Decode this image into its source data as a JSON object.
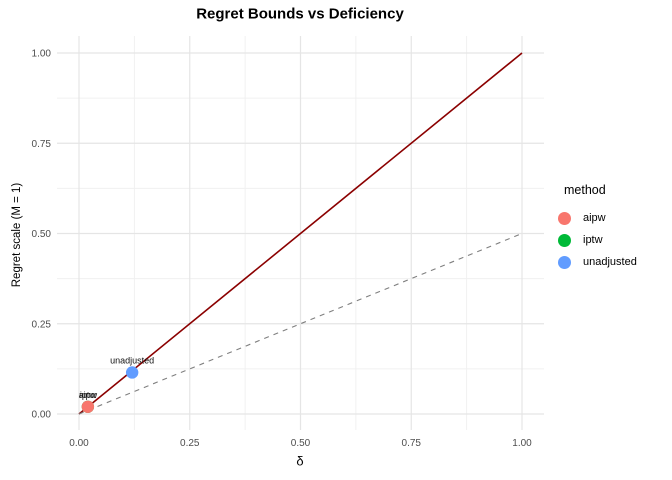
{
  "chart_data": {
    "type": "scatter",
    "title": "Regret Bounds vs Deficiency",
    "xlabel": "δ",
    "ylabel": "Regret scale (M = 1)",
    "xlim": [
      0,
      1
    ],
    "ylim": [
      0,
      1
    ],
    "grid": "on",
    "x_ticks": [
      {
        "v": 0.0,
        "label": "0.00"
      },
      {
        "v": 0.25,
        "label": "0.25"
      },
      {
        "v": 0.5,
        "label": "0.50"
      },
      {
        "v": 0.75,
        "label": "0.75"
      },
      {
        "v": 1.0,
        "label": "1.00"
      }
    ],
    "y_ticks": [
      {
        "v": 0.0,
        "label": "0.00"
      },
      {
        "v": 0.25,
        "label": "0.25"
      },
      {
        "v": 0.5,
        "label": "0.50"
      },
      {
        "v": 0.75,
        "label": "0.75"
      },
      {
        "v": 1.0,
        "label": "1.00"
      }
    ],
    "minor_breaks": [
      0.125,
      0.375,
      0.625,
      0.875
    ],
    "lines": [
      {
        "name": "bound-line-slope-1",
        "x1": 0,
        "y1": 0,
        "x2": 1,
        "y2": 1,
        "color": "#8B0000",
        "dash": "solid",
        "width": 1.6
      },
      {
        "name": "reference-line-slope-half",
        "x1": 0,
        "y1": 0,
        "x2": 1,
        "y2": 0.5,
        "color": "#7F7F7F",
        "dash": "dashed",
        "width": 1.1
      }
    ],
    "points": [
      {
        "method": "iptw",
        "x": 0.02,
        "y": 0.02,
        "color": "#00BA38",
        "label": "iptw"
      },
      {
        "method": "aipw",
        "x": 0.02,
        "y": 0.02,
        "color": "#F8766D",
        "label": "aipw"
      },
      {
        "method": "unadjusted",
        "x": 0.12,
        "y": 0.115,
        "color": "#619CFF",
        "label": "unadjusted"
      }
    ],
    "legend": {
      "title": "method",
      "position": "right",
      "items": [
        {
          "label": "aipw",
          "color": "#F8766D"
        },
        {
          "label": "iptw",
          "color": "#00BA38"
        },
        {
          "label": "unadjusted",
          "color": "#619CFF"
        }
      ]
    },
    "style": {
      "grid_major_color": "#E5E5E5",
      "grid_minor_color": "#F0F0F0",
      "tick_label_color": "#4D4D4D",
      "point_label_color": "#111111",
      "background": "#FFFFFF"
    }
  }
}
